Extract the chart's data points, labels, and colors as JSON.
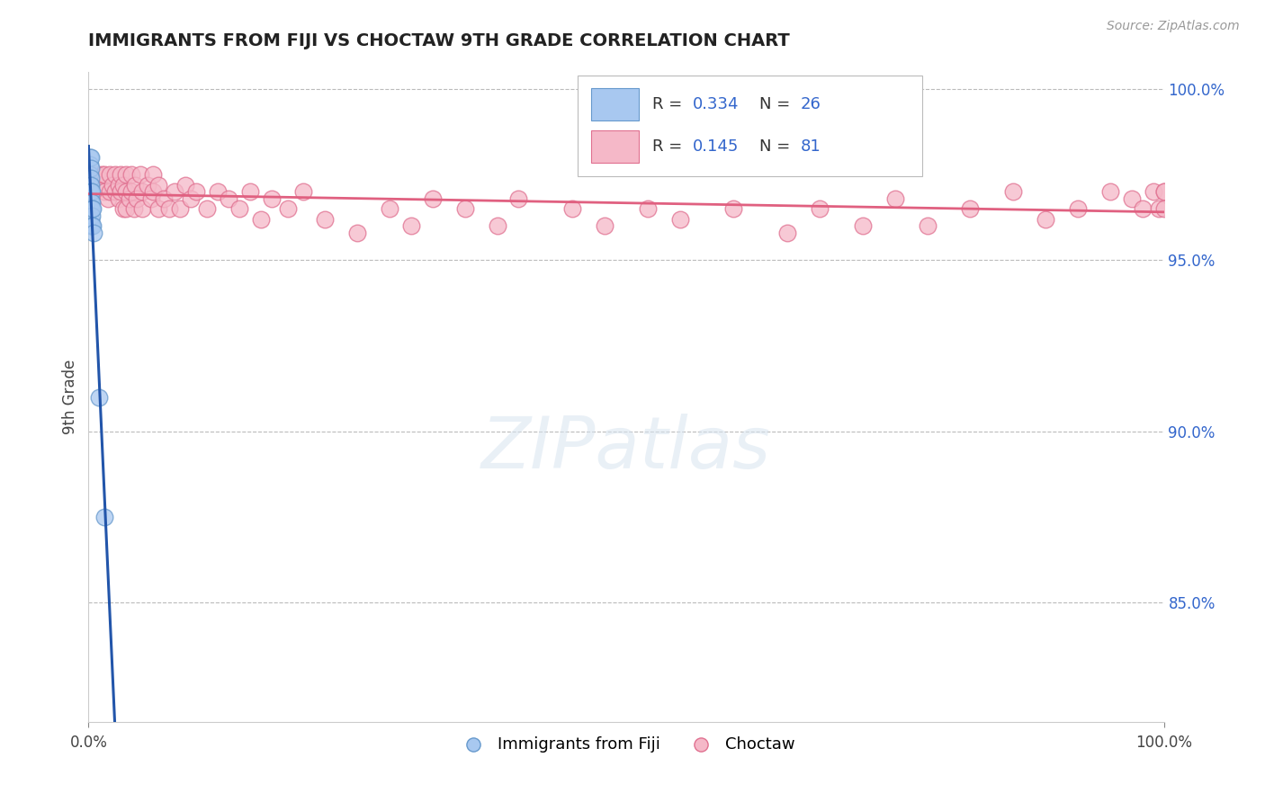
{
  "title": "IMMIGRANTS FROM FIJI VS CHOCTAW 9TH GRADE CORRELATION CHART",
  "source_text": "Source: ZipAtlas.com",
  "ylabel": "9th Grade",
  "right_yticks": [
    "100.0%",
    "95.0%",
    "90.0%",
    "85.0%"
  ],
  "right_ytick_vals": [
    1.0,
    0.95,
    0.9,
    0.85
  ],
  "fiji_color": "#a8c8f0",
  "fiji_edge": "#6699cc",
  "choctaw_color": "#f5b8c8",
  "choctaw_edge": "#e07090",
  "fiji_line_color": "#2255aa",
  "choctaw_line_color": "#e06080",
  "xlim": [
    0.0,
    1.0
  ],
  "ylim": [
    0.815,
    1.005
  ],
  "grid_color": "#bbbbbb",
  "background_color": "#ffffff",
  "fiji_points_x": [
    0.001,
    0.001,
    0.001,
    0.001,
    0.001,
    0.001,
    0.001,
    0.002,
    0.002,
    0.002,
    0.002,
    0.002,
    0.002,
    0.002,
    0.002,
    0.002,
    0.003,
    0.003,
    0.003,
    0.003,
    0.003,
    0.004,
    0.004,
    0.005,
    0.01,
    0.015
  ],
  "fiji_points_y": [
    0.98,
    0.978,
    0.975,
    0.972,
    0.97,
    0.968,
    0.965,
    0.98,
    0.977,
    0.974,
    0.972,
    0.97,
    0.967,
    0.965,
    0.962,
    0.96,
    0.97,
    0.967,
    0.965,
    0.963,
    0.96,
    0.965,
    0.96,
    0.958,
    0.91,
    0.875
  ],
  "choctaw_points_x": [
    0.008,
    0.01,
    0.012,
    0.015,
    0.015,
    0.018,
    0.02,
    0.02,
    0.022,
    0.025,
    0.025,
    0.028,
    0.028,
    0.03,
    0.03,
    0.032,
    0.032,
    0.035,
    0.035,
    0.035,
    0.038,
    0.04,
    0.04,
    0.042,
    0.043,
    0.045,
    0.048,
    0.05,
    0.05,
    0.055,
    0.058,
    0.06,
    0.06,
    0.065,
    0.065,
    0.07,
    0.075,
    0.08,
    0.085,
    0.09,
    0.095,
    0.1,
    0.11,
    0.12,
    0.13,
    0.14,
    0.15,
    0.16,
    0.17,
    0.185,
    0.2,
    0.22,
    0.25,
    0.28,
    0.3,
    0.32,
    0.35,
    0.38,
    0.4,
    0.45,
    0.48,
    0.52,
    0.55,
    0.6,
    0.65,
    0.68,
    0.72,
    0.75,
    0.78,
    0.82,
    0.86,
    0.89,
    0.92,
    0.95,
    0.97,
    0.98,
    0.99,
    0.995,
    1.0,
    1.0,
    1.0
  ],
  "choctaw_points_y": [
    0.975,
    0.972,
    0.975,
    0.97,
    0.975,
    0.968,
    0.975,
    0.97,
    0.972,
    0.97,
    0.975,
    0.968,
    0.972,
    0.975,
    0.97,
    0.965,
    0.972,
    0.975,
    0.97,
    0.965,
    0.968,
    0.975,
    0.97,
    0.965,
    0.972,
    0.968,
    0.975,
    0.97,
    0.965,
    0.972,
    0.968,
    0.975,
    0.97,
    0.965,
    0.972,
    0.968,
    0.965,
    0.97,
    0.965,
    0.972,
    0.968,
    0.97,
    0.965,
    0.97,
    0.968,
    0.965,
    0.97,
    0.962,
    0.968,
    0.965,
    0.97,
    0.962,
    0.958,
    0.965,
    0.96,
    0.968,
    0.965,
    0.96,
    0.968,
    0.965,
    0.96,
    0.965,
    0.962,
    0.965,
    0.958,
    0.965,
    0.96,
    0.968,
    0.96,
    0.965,
    0.97,
    0.962,
    0.965,
    0.97,
    0.968,
    0.965,
    0.97,
    0.965,
    0.97,
    0.965,
    0.97
  ],
  "watermark_text": "ZIPatlas",
  "legend_fiji_label": "R = 0.334   N = 26",
  "legend_choctaw_label": "R = 0.145   N = 81",
  "bottom_legend_fiji": "Immigrants from Fiji",
  "bottom_legend_choctaw": "Choctaw"
}
